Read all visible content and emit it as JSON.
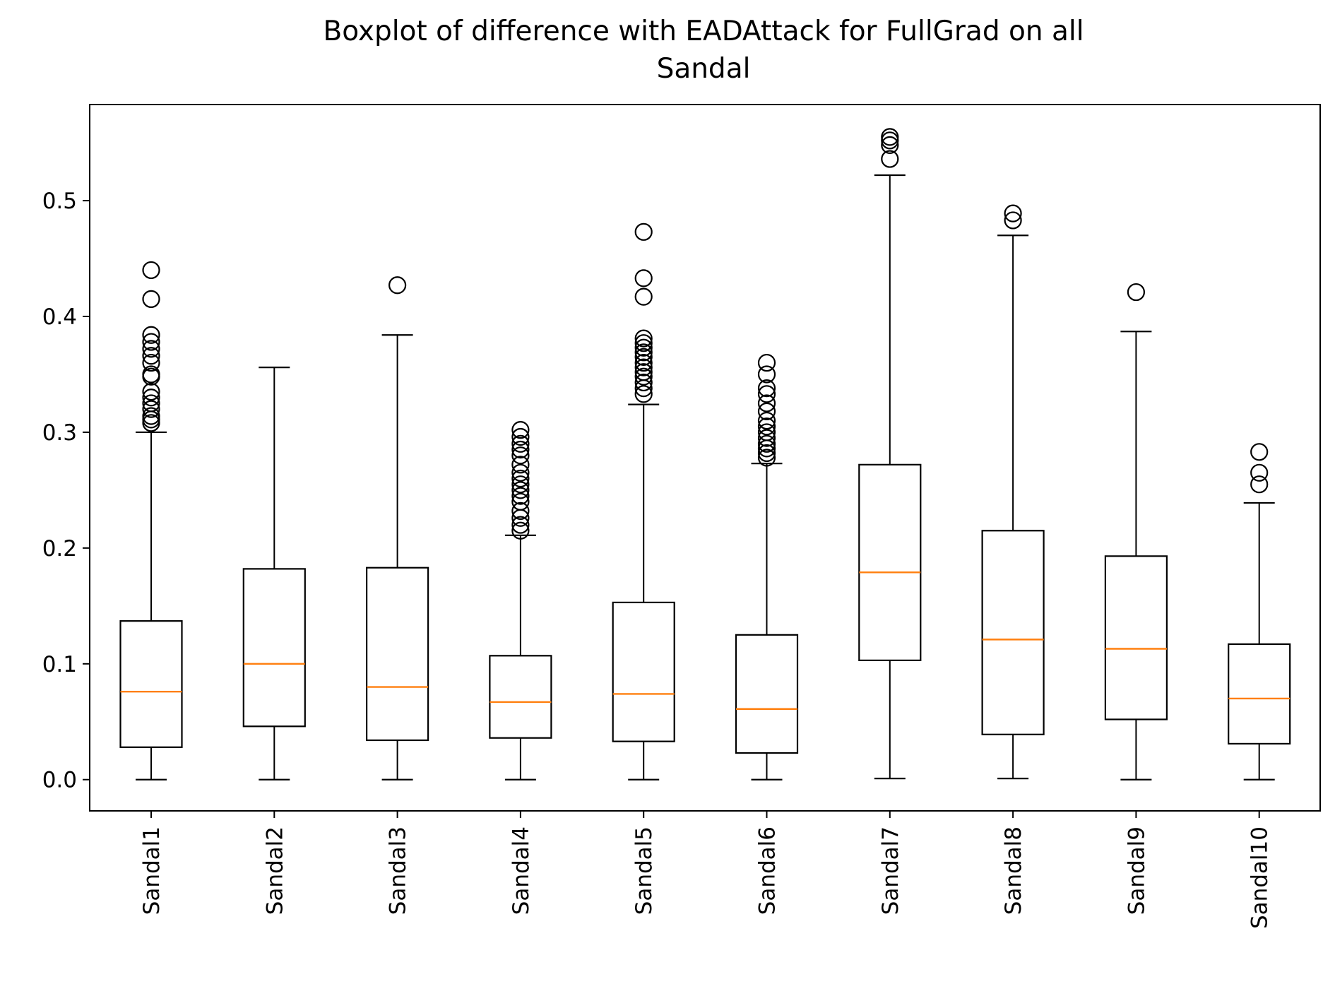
{
  "chart_data": {
    "type": "boxplot",
    "title": "Boxplot of difference with EADAttack for FullGrad on all Sandal",
    "title_lines": [
      "Boxplot of difference with EADAttack for FullGrad on all",
      "Sandal"
    ],
    "xlabel": "",
    "ylabel": "",
    "ylim": [
      -0.027,
      0.583
    ],
    "y_ticks": [
      0.0,
      0.1,
      0.2,
      0.3,
      0.4,
      0.5
    ],
    "y_tick_labels": [
      "0.0",
      "0.1",
      "0.2",
      "0.3",
      "0.4",
      "0.5"
    ],
    "grid": false,
    "legend": "none",
    "x_tick_rotation": "vertical",
    "colors": {
      "box": "#000000",
      "median": "#ff7f0e",
      "flier": "#000000",
      "background": "#ffffff"
    },
    "categories": [
      "Sandal1",
      "Sandal2",
      "Sandal3",
      "Sandal4",
      "Sandal5",
      "Sandal6",
      "Sandal7",
      "Sandal8",
      "Sandal9",
      "Sandal10"
    ],
    "boxes": [
      {
        "label": "Sandal1",
        "whisker_low": 0.0,
        "q1": 0.028,
        "median": 0.076,
        "q3": 0.137,
        "whisker_high": 0.3,
        "outliers": [
          0.44,
          0.415,
          0.384,
          0.378,
          0.372,
          0.366,
          0.36,
          0.35,
          0.348,
          0.335,
          0.33,
          0.325,
          0.32,
          0.314,
          0.311,
          0.308
        ]
      },
      {
        "label": "Sandal2",
        "whisker_low": 0.0,
        "q1": 0.046,
        "median": 0.1,
        "q3": 0.182,
        "whisker_high": 0.356,
        "outliers": []
      },
      {
        "label": "Sandal3",
        "whisker_low": 0.0,
        "q1": 0.034,
        "median": 0.08,
        "q3": 0.183,
        "whisker_high": 0.384,
        "outliers": [
          0.427
        ]
      },
      {
        "label": "Sandal4",
        "whisker_low": 0.0,
        "q1": 0.036,
        "median": 0.067,
        "q3": 0.107,
        "whisker_high": 0.211,
        "outliers": [
          0.302,
          0.296,
          0.29,
          0.285,
          0.28,
          0.272,
          0.265,
          0.26,
          0.255,
          0.25,
          0.245,
          0.24,
          0.232,
          0.226,
          0.22,
          0.215
        ]
      },
      {
        "label": "Sandal5",
        "whisker_low": 0.0,
        "q1": 0.033,
        "median": 0.074,
        "q3": 0.153,
        "whisker_high": 0.324,
        "outliers": [
          0.473,
          0.433,
          0.417,
          0.381,
          0.377,
          0.373,
          0.369,
          0.365,
          0.36,
          0.356,
          0.352,
          0.348,
          0.343,
          0.338,
          0.333
        ]
      },
      {
        "label": "Sandal6",
        "whisker_low": 0.0,
        "q1": 0.023,
        "median": 0.061,
        "q3": 0.125,
        "whisker_high": 0.273,
        "outliers": [
          0.36,
          0.35,
          0.338,
          0.333,
          0.325,
          0.318,
          0.31,
          0.305,
          0.3,
          0.295,
          0.29,
          0.286,
          0.282,
          0.278
        ]
      },
      {
        "label": "Sandal7",
        "whisker_low": 0.001,
        "q1": 0.103,
        "median": 0.179,
        "q3": 0.272,
        "whisker_high": 0.522,
        "outliers": [
          0.555,
          0.552,
          0.548,
          0.536
        ]
      },
      {
        "label": "Sandal8",
        "whisker_low": 0.001,
        "q1": 0.039,
        "median": 0.121,
        "q3": 0.215,
        "whisker_high": 0.47,
        "outliers": [
          0.489,
          0.483
        ]
      },
      {
        "label": "Sandal9",
        "whisker_low": 0.0,
        "q1": 0.052,
        "median": 0.113,
        "q3": 0.193,
        "whisker_high": 0.387,
        "outliers": [
          0.421
        ]
      },
      {
        "label": "Sandal10",
        "whisker_low": 0.0,
        "q1": 0.031,
        "median": 0.07,
        "q3": 0.117,
        "whisker_high": 0.239,
        "outliers": [
          0.283,
          0.265,
          0.255
        ]
      }
    ]
  }
}
